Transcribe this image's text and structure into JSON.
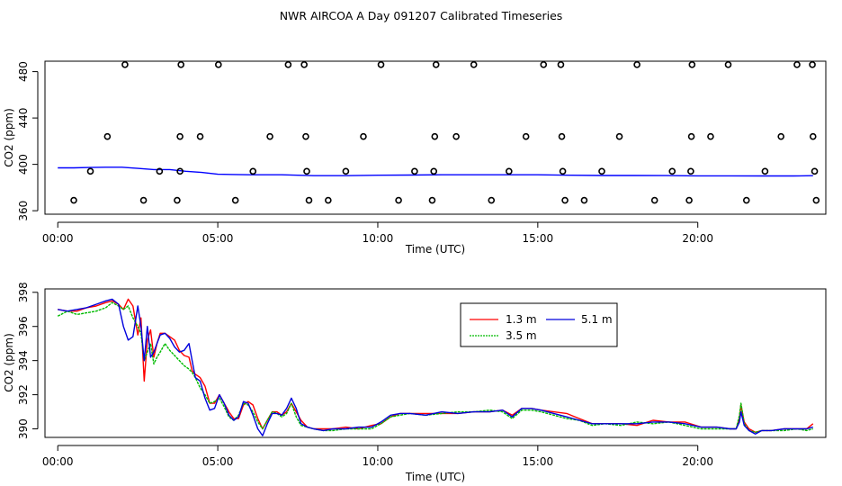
{
  "title": "NWR AIRCOA A  Day 091207  Calibrated Timeseries",
  "chart_data": [
    {
      "type": "scatter",
      "xlabel": "Time (UTC)",
      "ylabel": "CO2 (ppm)",
      "xlim": [
        -0.4,
        24.0
      ],
      "ylim": [
        357,
        489
      ],
      "x_ticks": [
        0,
        5,
        10,
        15,
        20
      ],
      "x_tick_labels": [
        "00:00",
        "05:00",
        "10:00",
        "15:00",
        "20:00"
      ],
      "y_ticks": [
        360,
        400,
        440,
        480
      ],
      "y_tick_labels": [
        "360",
        "400",
        "440",
        "480"
      ],
      "points": {
        "name": "",
        "marker": "open-circle",
        "color": "#000000",
        "x": [
          0.5,
          1.02,
          1.55,
          2.1,
          2.68,
          3.18,
          3.73,
          3.82,
          3.82,
          3.85,
          4.45,
          5.02,
          5.55,
          6.1,
          6.63,
          7.2,
          7.7,
          7.75,
          7.78,
          7.85,
          8.45,
          9.0,
          9.55,
          10.1,
          10.65,
          11.15,
          11.7,
          11.75,
          11.78,
          11.82,
          12.45,
          13.0,
          13.55,
          14.1,
          14.63,
          15.18,
          15.72,
          15.75,
          15.78,
          15.85,
          16.45,
          17.0,
          17.55,
          18.1,
          18.65,
          19.2,
          19.73,
          19.78,
          19.8,
          19.82,
          20.4,
          20.95,
          21.52,
          22.1,
          22.6,
          23.1,
          23.58,
          23.6,
          23.65,
          23.7
        ],
        "y": [
          369,
          394,
          424,
          486,
          369,
          394,
          369,
          394,
          424,
          486,
          424,
          486,
          369,
          394,
          424,
          486,
          486,
          424,
          394,
          369,
          369,
          394,
          424,
          486,
          369,
          394,
          369,
          394,
          424,
          486,
          424,
          486,
          369,
          394,
          424,
          486,
          486,
          424,
          394,
          369,
          369,
          394,
          424,
          486,
          369,
          394,
          369,
          394,
          424,
          486,
          424,
          486,
          369,
          394,
          424,
          486,
          486,
          424,
          394,
          369
        ]
      },
      "series": [
        {
          "name": "",
          "color": "#0000ff",
          "x": [
            0,
            0.5,
            1,
            1.5,
            2,
            2.5,
            3,
            3.5,
            4,
            4.5,
            5,
            6,
            7,
            8,
            9,
            10,
            11,
            12,
            13,
            14,
            15,
            16,
            17,
            18,
            19,
            20,
            21,
            22,
            23,
            23.6
          ],
          "y": [
            397,
            397,
            397.3,
            397.5,
            397.5,
            396.5,
            395.5,
            395.5,
            394,
            393,
            391.5,
            391,
            391,
            390.2,
            390.2,
            390.6,
            390.8,
            391,
            391,
            391,
            391,
            390.6,
            390.4,
            390.4,
            390.3,
            390.1,
            390.1,
            390,
            390,
            390.2
          ]
        }
      ]
    },
    {
      "type": "line",
      "xlabel": "Time (UTC)",
      "ylabel": "CO2 (ppm)",
      "xlim": [
        -0.4,
        24.0
      ],
      "ylim": [
        389.5,
        398.2
      ],
      "x_ticks": [
        0,
        5,
        10,
        15,
        20
      ],
      "x_tick_labels": [
        "00:00",
        "05:00",
        "10:00",
        "15:00",
        "20:00"
      ],
      "y_ticks": [
        390,
        392,
        394,
        396,
        398
      ],
      "y_tick_labels": [
        "390",
        "392",
        "394",
        "396",
        "398"
      ],
      "legend": {
        "placement": "top-right-inside"
      },
      "series": [
        {
          "name": "1.3 m",
          "color": "#ff0000",
          "x": [
            0,
            0.3,
            0.6,
            0.9,
            1.2,
            1.5,
            1.7,
            1.9,
            2.05,
            2.2,
            2.35,
            2.5,
            2.6,
            2.7,
            2.8,
            2.9,
            3.0,
            3.1,
            3.2,
            3.35,
            3.5,
            3.65,
            3.8,
            3.95,
            4.1,
            4.2,
            4.3,
            4.45,
            4.6,
            4.75,
            4.9,
            5.05,
            5.2,
            5.35,
            5.5,
            5.65,
            5.8,
            5.95,
            6.1,
            6.25,
            6.4,
            6.55,
            6.7,
            6.85,
            7.0,
            7.15,
            7.3,
            7.45,
            7.6,
            7.8,
            8.0,
            8.3,
            8.6,
            9.0,
            9.4,
            9.8,
            10.1,
            10.4,
            10.7,
            11.0,
            11.5,
            12.0,
            12.5,
            13.0,
            13.5,
            13.9,
            14.2,
            14.5,
            14.8,
            15.1,
            15.5,
            15.9,
            16.3,
            16.7,
            17.1,
            17.6,
            18.1,
            18.6,
            19.1,
            19.6,
            20.1,
            20.6,
            21.0,
            21.2,
            21.3,
            21.35,
            21.45,
            21.6,
            21.8,
            22.0,
            22.3,
            22.7,
            23.1,
            23.4,
            23.6
          ],
          "y": [
            397.0,
            396.9,
            396.9,
            397.1,
            397.2,
            397.4,
            397.5,
            397.3,
            397.0,
            397.6,
            397.2,
            395.5,
            396.5,
            392.8,
            395.2,
            395.8,
            394.2,
            395.0,
            395.6,
            395.6,
            395.4,
            395.2,
            394.6,
            394.3,
            394.2,
            393.4,
            393.2,
            393.0,
            392.5,
            391.5,
            391.5,
            392.0,
            391.5,
            391.0,
            390.6,
            390.6,
            391.4,
            391.6,
            391.4,
            390.6,
            390.0,
            390.5,
            391.0,
            391.0,
            390.8,
            391.0,
            391.5,
            391.0,
            390.5,
            390.1,
            390.0,
            390.0,
            390.0,
            390.1,
            390.0,
            390.2,
            390.3,
            390.7,
            390.9,
            390.9,
            390.9,
            390.9,
            390.9,
            391.0,
            391.0,
            391.1,
            390.8,
            391.2,
            391.2,
            391.1,
            391.0,
            390.9,
            390.6,
            390.3,
            390.3,
            390.3,
            390.2,
            390.5,
            390.4,
            390.4,
            390.1,
            390.1,
            390.0,
            390.0,
            390.6,
            391.4,
            390.4,
            390.0,
            389.8,
            389.9,
            389.9,
            390.0,
            390.0,
            390.0,
            390.3
          ]
        },
        {
          "name": "3.5 m",
          "color": "#00bb00",
          "x": [
            0,
            0.3,
            0.6,
            0.9,
            1.2,
            1.5,
            1.7,
            1.9,
            2.05,
            2.2,
            2.35,
            2.5,
            2.6,
            2.7,
            2.8,
            2.9,
            3.0,
            3.1,
            3.2,
            3.35,
            3.5,
            3.65,
            3.8,
            3.95,
            4.1,
            4.2,
            4.3,
            4.45,
            4.6,
            4.75,
            4.9,
            5.05,
            5.2,
            5.35,
            5.5,
            5.65,
            5.8,
            5.95,
            6.1,
            6.25,
            6.4,
            6.55,
            6.7,
            6.85,
            7.0,
            7.15,
            7.3,
            7.45,
            7.6,
            7.8,
            8.0,
            8.3,
            8.6,
            9.0,
            9.4,
            9.8,
            10.1,
            10.4,
            10.7,
            11.0,
            11.5,
            12.0,
            12.5,
            13.0,
            13.5,
            13.9,
            14.2,
            14.5,
            14.8,
            15.1,
            15.5,
            15.9,
            16.3,
            16.7,
            17.1,
            17.6,
            18.1,
            18.6,
            19.1,
            19.6,
            20.1,
            20.6,
            21.0,
            21.2,
            21.3,
            21.35,
            21.45,
            21.6,
            21.8,
            22.0,
            22.3,
            22.7,
            23.1,
            23.4,
            23.6
          ],
          "y": [
            396.6,
            396.9,
            396.7,
            396.8,
            396.9,
            397.1,
            397.4,
            397.2,
            397.0,
            397.2,
            396.5,
            396.0,
            395.6,
            394.0,
            394.5,
            395.0,
            393.8,
            394.2,
            394.5,
            395.0,
            394.6,
            394.3,
            394.0,
            393.7,
            393.5,
            393.3,
            393.0,
            392.4,
            392.0,
            391.5,
            391.6,
            391.8,
            391.3,
            390.7,
            390.5,
            390.8,
            391.5,
            391.4,
            391.0,
            390.4,
            390.0,
            390.5,
            391.0,
            390.9,
            390.7,
            390.9,
            391.5,
            390.7,
            390.2,
            390.1,
            390.0,
            389.9,
            389.9,
            390.0,
            390.0,
            390.0,
            390.3,
            390.7,
            390.8,
            390.9,
            390.8,
            390.9,
            391.0,
            391.0,
            391.1,
            391.0,
            390.6,
            391.1,
            391.1,
            391.0,
            390.8,
            390.6,
            390.5,
            390.2,
            390.3,
            390.2,
            390.4,
            390.3,
            390.4,
            390.2,
            390.0,
            390.0,
            390.0,
            390.0,
            390.8,
            391.5,
            390.3,
            389.9,
            389.8,
            389.9,
            389.9,
            389.9,
            390.0,
            389.9,
            390.0
          ]
        },
        {
          "name": "5.1 m",
          "color": "#0000dd",
          "x": [
            0,
            0.3,
            0.6,
            0.9,
            1.2,
            1.5,
            1.7,
            1.9,
            2.05,
            2.2,
            2.35,
            2.5,
            2.6,
            2.7,
            2.8,
            2.9,
            3.0,
            3.1,
            3.2,
            3.35,
            3.5,
            3.65,
            3.8,
            3.95,
            4.1,
            4.2,
            4.3,
            4.45,
            4.6,
            4.75,
            4.9,
            5.05,
            5.2,
            5.35,
            5.5,
            5.65,
            5.8,
            5.95,
            6.1,
            6.25,
            6.4,
            6.55,
            6.7,
            6.85,
            7.0,
            7.15,
            7.3,
            7.45,
            7.6,
            7.8,
            8.0,
            8.3,
            8.6,
            9.0,
            9.4,
            9.8,
            10.1,
            10.4,
            10.7,
            11.0,
            11.5,
            12.0,
            12.5,
            13.0,
            13.5,
            13.9,
            14.2,
            14.5,
            14.8,
            15.1,
            15.5,
            15.9,
            16.3,
            16.7,
            17.1,
            17.6,
            18.1,
            18.6,
            19.1,
            19.6,
            20.1,
            20.6,
            21.0,
            21.2,
            21.3,
            21.35,
            21.45,
            21.6,
            21.8,
            22.0,
            22.3,
            22.7,
            23.1,
            23.4,
            23.6
          ],
          "y": [
            397.0,
            396.9,
            397.0,
            397.1,
            397.3,
            397.5,
            397.6,
            397.3,
            396.0,
            395.2,
            395.4,
            397.2,
            396.0,
            394.0,
            396.0,
            394.2,
            394.5,
            395.0,
            395.5,
            395.6,
            395.3,
            394.8,
            394.5,
            394.6,
            395.0,
            394.0,
            393.0,
            392.8,
            391.8,
            391.1,
            391.2,
            392.0,
            391.5,
            390.8,
            390.5,
            390.7,
            391.6,
            391.5,
            390.8,
            390.0,
            389.6,
            390.3,
            390.9,
            390.9,
            390.8,
            391.2,
            391.8,
            391.2,
            390.3,
            390.1,
            390.0,
            389.9,
            390.0,
            390.0,
            390.1,
            390.1,
            390.4,
            390.8,
            390.9,
            390.9,
            390.8,
            391.0,
            390.9,
            391.0,
            391.0,
            391.1,
            390.7,
            391.2,
            391.2,
            391.1,
            390.9,
            390.7,
            390.5,
            390.3,
            390.3,
            390.3,
            390.3,
            390.4,
            390.4,
            390.3,
            390.1,
            390.1,
            390.0,
            390.0,
            390.4,
            391.0,
            390.2,
            389.9,
            389.7,
            389.9,
            389.9,
            390.0,
            390.0,
            390.0,
            390.1
          ]
        }
      ]
    }
  ]
}
